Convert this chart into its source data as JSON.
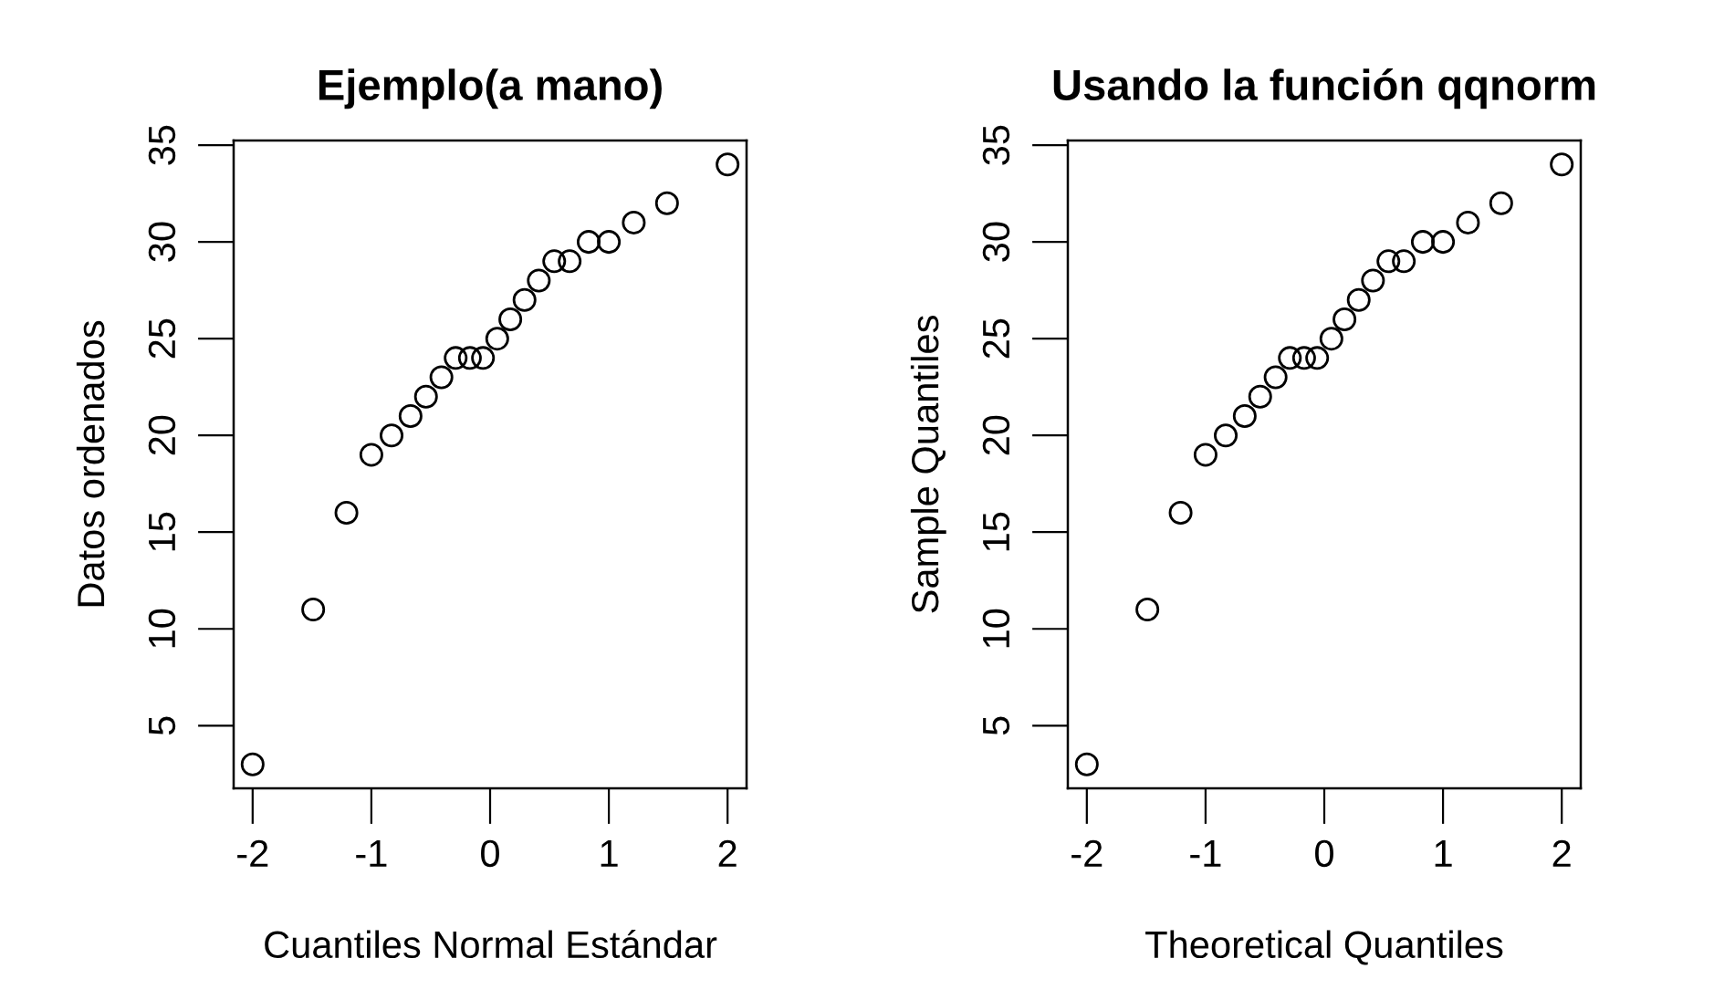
{
  "chart_data": [
    {
      "type": "scatter",
      "title": "Ejemplo(a mano)",
      "xlabel": "Cuantiles Normal Estándar",
      "ylabel": "Datos ordenados",
      "marker": "circle",
      "grid": false,
      "legend": false,
      "x": [
        -2.0,
        -1.49,
        -1.21,
        -1.0,
        -0.83,
        -0.67,
        -0.54,
        -0.41,
        -0.29,
        -0.17,
        -0.06,
        0.06,
        0.17,
        0.29,
        0.41,
        0.54,
        0.67,
        0.83,
        1.0,
        1.21,
        1.49,
        2.0
      ],
      "values": [
        3,
        11,
        16,
        19,
        20,
        21,
        22,
        23,
        24,
        24,
        24,
        25,
        26,
        27,
        28,
        29,
        29,
        30,
        30,
        31,
        32,
        34
      ],
      "xlim": [
        -2.16,
        2.16
      ],
      "ylim": [
        1.76,
        35.24
      ],
      "xticks": [
        -2,
        -1,
        0,
        1,
        2
      ],
      "yticks": [
        5,
        10,
        15,
        20,
        25,
        30,
        35
      ]
    },
    {
      "type": "scatter",
      "title": "Usando la función qqnorm",
      "xlabel": "Theoretical Quantiles",
      "ylabel": "Sample Quantiles",
      "marker": "circle",
      "grid": false,
      "legend": false,
      "x": [
        -2.0,
        -1.49,
        -1.21,
        -1.0,
        -0.83,
        -0.67,
        -0.54,
        -0.41,
        -0.29,
        -0.17,
        -0.06,
        0.06,
        0.17,
        0.29,
        0.41,
        0.54,
        0.67,
        0.83,
        1.0,
        1.21,
        1.49,
        2.0
      ],
      "values": [
        3,
        11,
        16,
        19,
        20,
        21,
        22,
        23,
        24,
        24,
        24,
        25,
        26,
        27,
        28,
        29,
        29,
        30,
        30,
        31,
        32,
        34
      ],
      "xlim": [
        -2.16,
        2.16
      ],
      "ylim": [
        1.76,
        35.24
      ],
      "xticks": [
        -2,
        -1,
        0,
        1,
        2
      ],
      "yticks": [
        5,
        10,
        15,
        20,
        25,
        30,
        35
      ]
    }
  ]
}
